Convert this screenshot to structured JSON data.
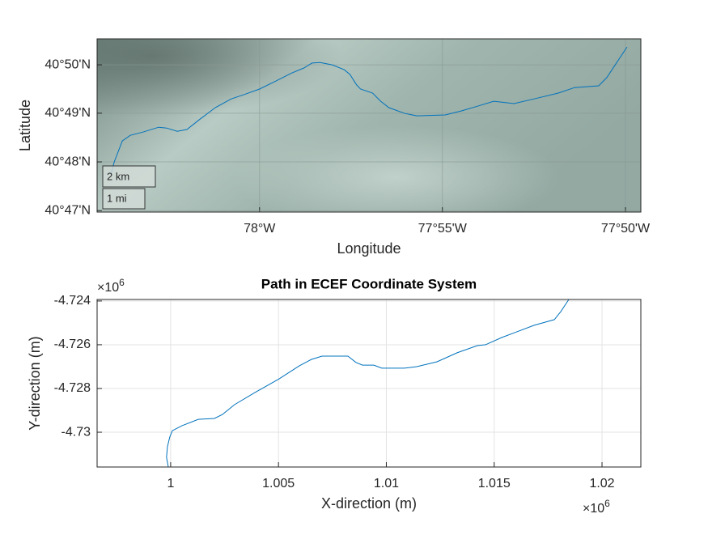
{
  "chart_data": [
    {
      "type": "geoline",
      "xlabel": "Longitude",
      "ylabel": "Latitude",
      "color": "#0072bd",
      "grid": true,
      "x": [
        -78.0677,
        -78.0662,
        -78.0625,
        -78.0589,
        -78.0533,
        -78.046,
        -78.0423,
        -78.0375,
        -78.0331,
        -78.0276,
        -78.0202,
        -78.0129,
        -78.0074,
        -78.0,
        -77.9926,
        -77.9853,
        -77.9798,
        -77.9761,
        -77.9724,
        -77.9669,
        -77.9614,
        -77.9588,
        -77.9558,
        -77.954,
        -77.9485,
        -77.9448,
        -77.9411,
        -77.9338,
        -77.9283,
        -77.9154,
        -77.908,
        -77.9007,
        -77.8933,
        -77.8896,
        -77.8841,
        -77.8749,
        -77.8639,
        -77.8565,
        -77.8455,
        -77.8418,
        -77.8326
      ],
      "y": [
        40.7958,
        40.8,
        40.8072,
        40.8091,
        40.8102,
        40.8119,
        40.8116,
        40.8105,
        40.8111,
        40.8144,
        40.8186,
        40.8216,
        40.823,
        40.825,
        40.8277,
        40.8305,
        40.8322,
        40.8339,
        40.8341,
        40.8333,
        40.8316,
        40.83,
        40.8264,
        40.825,
        40.8236,
        40.8208,
        40.8186,
        40.8166,
        40.8158,
        40.8161,
        40.8175,
        40.8191,
        40.8208,
        40.8205,
        40.82,
        40.8216,
        40.8236,
        40.8255,
        40.8261,
        40.8289,
        40.8394
      ],
      "xlim": [
        -78.074,
        -77.8263
      ],
      "ylim": [
        40.7828,
        40.8422
      ],
      "xticks": [
        {
          "value": -78.0,
          "label": "78°W"
        },
        {
          "value": -77.9167,
          "label": "77°55'W"
        },
        {
          "value": -77.8333,
          "label": "77°50'W"
        }
      ],
      "yticks": [
        {
          "value": 40.7833,
          "label": "40°47'N"
        },
        {
          "value": 40.8,
          "label": "40°48'N"
        },
        {
          "value": 40.8167,
          "label": "40°49'N"
        },
        {
          "value": 40.8333,
          "label": "40°50'N"
        }
      ],
      "scale_bar": [
        "2 km",
        "1 mi"
      ]
    },
    {
      "type": "line",
      "title": "Path in ECEF Coordinate System",
      "xlabel": "X-direction (m)",
      "ylabel": "Y-direction (m)",
      "color": "#0072bd",
      "grid": true,
      "x": [
        0.99989,
        0.99981,
        0.99985,
        0.99996,
        1.00008,
        1.00053,
        1.00128,
        1.00203,
        1.0024,
        1.00296,
        1.0039,
        1.00503,
        1.00597,
        1.00653,
        1.00702,
        1.00822,
        1.00859,
        1.00889,
        1.00942,
        1.00979,
        1.01084,
        1.01141,
        1.01235,
        1.01328,
        1.01422,
        1.0146,
        1.01535,
        1.01685,
        1.01779,
        1.01809,
        1.01846
      ],
      "y": [
        -4.73159,
        -4.73115,
        -4.73067,
        -4.73022,
        -4.72993,
        -4.7297,
        -4.72941,
        -4.72937,
        -4.72919,
        -4.72874,
        -4.72819,
        -4.72756,
        -4.72696,
        -4.72667,
        -4.72652,
        -4.72652,
        -4.72681,
        -4.72693,
        -4.72693,
        -4.72707,
        -4.72707,
        -4.727,
        -4.72678,
        -4.72637,
        -4.72604,
        -4.726,
        -4.72567,
        -4.72511,
        -4.72485,
        -4.72448,
        -4.72393
      ],
      "xlim": [
        0.99659,
        1.0218
      ],
      "ylim": [
        -4.73159,
        -4.72393
      ],
      "xticks": [
        1,
        1.005,
        1.01,
        1.015,
        1.02
      ],
      "yticks": [
        -4.73,
        -4.728,
        -4.726,
        -4.724
      ],
      "x_exponent": {
        "base": "×10",
        "power": "6"
      },
      "y_exponent": {
        "base": "×10",
        "power": "6"
      }
    }
  ]
}
